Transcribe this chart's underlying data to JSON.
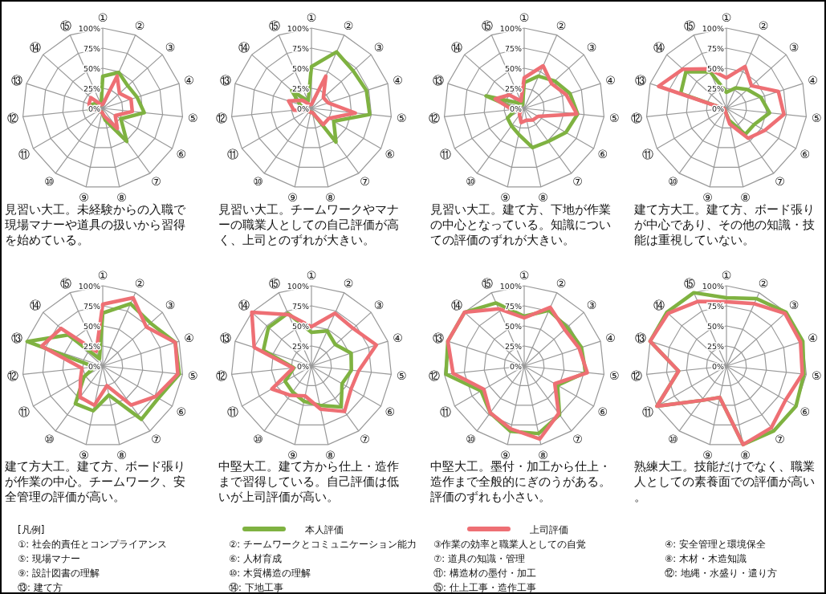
{
  "chart_data": [
    {
      "type": "radar",
      "categories": [
        "①",
        "②",
        "③",
        "④",
        "⑤",
        "⑥",
        "⑦",
        "⑧",
        "⑨",
        "⑩",
        "⑪",
        "⑫",
        "⑬",
        "⑭",
        "⑮"
      ],
      "ylim": [
        0,
        100
      ],
      "yticks": [
        {
          "value": 0,
          "label": "0%"
        },
        {
          "value": 25,
          "label": "25%"
        },
        {
          "value": 50,
          "label": "50%"
        },
        {
          "value": 75,
          "label": "75%"
        },
        {
          "value": 100,
          "label": "100%"
        }
      ],
      "legend": "bottom",
      "series": [
        {
          "name": "本人評価",
          "color": "#7fb241",
          "values": [
            40,
            49,
            42,
            45,
            52,
            26,
            51,
            15,
            5,
            5,
            5,
            17,
            15,
            10,
            5
          ]
        },
        {
          "name": "上司評価",
          "color": "#ee6f74",
          "values": [
            5,
            44,
            28,
            37,
            37,
            18,
            31,
            10,
            5,
            5,
            5,
            15,
            18,
            20,
            5
          ]
        }
      ],
      "annotations": [
        "見習い大工。未経験からの入職で現場マナーや道具の扱いから習得を始めている。"
      ]
    },
    {
      "type": "radar",
      "categories": [
        "①",
        "②",
        "③",
        "④",
        "⑤",
        "⑥",
        "⑦",
        "⑧",
        "⑨",
        "⑩",
        "⑪",
        "⑫",
        "⑬",
        "⑭",
        "⑮"
      ],
      "ylim": [
        0,
        100
      ],
      "yticks": [
        {
          "value": 0,
          "label": "0%"
        },
        {
          "value": 25,
          "label": "25%"
        },
        {
          "value": 50,
          "label": "50%"
        },
        {
          "value": 75,
          "label": "75%"
        },
        {
          "value": 100,
          "label": "100%"
        }
      ],
      "series": [
        {
          "color": "#7fb241",
          "values": [
            52,
            77,
            70,
            72,
            73,
            32,
            52,
            5,
            5,
            5,
            5,
            8,
            15,
            33,
            10
          ]
        },
        {
          "color": "#ee6f74",
          "values": [
            5,
            44,
            20,
            22,
            55,
            25,
            25,
            5,
            5,
            5,
            5,
            22,
            30,
            15,
            5
          ]
        }
      ],
      "annotations": [
        "見習い大工。チームワークやマナーの職業人としての自己評価が高く、上司とのずれが大きい。"
      ]
    },
    {
      "type": "radar",
      "categories": [
        "①",
        "②",
        "③",
        "④",
        "⑤",
        "⑥",
        "⑦",
        "⑧",
        "⑨",
        "⑩",
        "⑪",
        "⑫",
        "⑬",
        "⑭",
        "⑮"
      ],
      "ylim": [
        0,
        100
      ],
      "yticks": [
        {
          "value": 0,
          "label": "0%"
        },
        {
          "value": 25,
          "label": "25%"
        },
        {
          "value": 50,
          "label": "50%"
        },
        {
          "value": 75,
          "label": "75%"
        },
        {
          "value": 100,
          "label": "100%"
        }
      ],
      "series": [
        {
          "color": "#7fb241",
          "values": [
            32,
            44,
            51,
            60,
            67,
            60,
            51,
            50,
            33,
            27,
            24,
            10,
            50,
            10,
            5
          ]
        },
        {
          "color": "#ee6f74",
          "values": [
            38,
            58,
            46,
            55,
            66,
            20,
            18,
            15,
            18,
            10,
            5,
            15,
            38,
            25,
            10
          ]
        }
      ],
      "annotations": [
        "見習い大工。建て方、下地が作業の中心となっている。知識についての評価のずれが大きい。"
      ]
    },
    {
      "type": "radar",
      "categories": [
        "①",
        "②",
        "③",
        "④",
        "⑤",
        "⑥",
        "⑦",
        "⑧",
        "⑨",
        "⑩",
        "⑪",
        "⑫",
        "⑬",
        "⑭",
        "⑮"
      ],
      "ylim": [
        0,
        100
      ],
      "yticks": [
        {
          "value": 0,
          "label": "0%"
        },
        {
          "value": 25,
          "label": "25%"
        },
        {
          "value": 50,
          "label": "50%"
        },
        {
          "value": 75,
          "label": "75%"
        },
        {
          "value": 100,
          "label": "100%"
        }
      ],
      "series": [
        {
          "color": "#7fb241",
          "values": [
            20,
            28,
            35,
            45,
            54,
            40,
            40,
            15,
            5,
            3,
            3,
            3,
            60,
            68,
            50
          ]
        },
        {
          "color": "#ee6f74",
          "values": [
            38,
            57,
            42,
            68,
            72,
            55,
            46,
            20,
            5,
            3,
            3,
            3,
            89,
            73,
            54
          ]
        }
      ],
      "annotations": [
        "建て方大工。建て方、ボード張りが中心であり、その他の知識・技能は重視していない。"
      ]
    },
    {
      "type": "radar",
      "categories": [
        "①",
        "②",
        "③",
        "④",
        "⑤",
        "⑥",
        "⑦",
        "⑧",
        "⑨",
        "⑩",
        "⑪",
        "⑫",
        "⑬",
        "⑭",
        "⑮"
      ],
      "ylim": [
        0,
        100
      ],
      "yticks": [
        {
          "value": 0,
          "label": "0%"
        },
        {
          "value": 25,
          "label": "25%"
        },
        {
          "value": 50,
          "label": "50%"
        },
        {
          "value": 75,
          "label": "75%"
        },
        {
          "value": 100,
          "label": "100%"
        }
      ],
      "series": [
        {
          "color": "#7fb241",
          "values": [
            66,
            85,
            80,
            95,
            96,
            80,
            82,
            37,
            57,
            58,
            27,
            10,
            99,
            58,
            10
          ]
        },
        {
          "color": "#ee6f74",
          "values": [
            77,
            93,
            73,
            95,
            94,
            76,
            60,
            25,
            50,
            48,
            32,
            26,
            80,
            70,
            20
          ]
        }
      ],
      "annotations": [
        "建て方大工。建て方、ボード張りが作業の中心。チームワーク、安全管理の評価が高い。"
      ]
    },
    {
      "type": "radar",
      "categories": [
        "①",
        "②",
        "③",
        "④",
        "⑤",
        "⑥",
        "⑦",
        "⑧",
        "⑨",
        "⑩",
        "⑪",
        "⑫",
        "⑬",
        "⑭",
        "⑮"
      ],
      "ylim": [
        0,
        100
      ],
      "yticks": [
        {
          "value": 0,
          "label": "0%"
        },
        {
          "value": 25,
          "label": "25%"
        },
        {
          "value": 50,
          "label": "50%"
        },
        {
          "value": 75,
          "label": "75%"
        },
        {
          "value": 100,
          "label": "100%"
        }
      ],
      "series": [
        {
          "color": "#7fb241",
          "values": [
            42,
            48,
            40,
            52,
            50,
            44,
            63,
            50,
            45,
            40,
            38,
            22,
            63,
            72,
            72
          ]
        },
        {
          "color": "#ee6f74",
          "values": [
            49,
            72,
            70,
            85,
            59,
            57,
            70,
            55,
            38,
            45,
            57,
            23,
            75,
            100,
            70
          ]
        }
      ],
      "annotations": [
        "中堅大工。建て方から仕上・造作まで習得している。自己評価は低いが上司評価が高い。"
      ]
    },
    {
      "type": "radar",
      "categories": [
        "①",
        "②",
        "③",
        "④",
        "⑤",
        "⑥",
        "⑦",
        "⑧",
        "⑨",
        "⑩",
        "⑪",
        "⑫",
        "⑬",
        "⑭",
        "⑮"
      ],
      "ylim": [
        0,
        100
      ],
      "yticks": [
        {
          "value": 0,
          "label": "0%"
        },
        {
          "value": 25,
          "label": "25%"
        },
        {
          "value": 50,
          "label": "50%"
        },
        {
          "value": 75,
          "label": "75%"
        },
        {
          "value": 100,
          "label": "100%"
        }
      ],
      "series": [
        {
          "color": "#7fb241",
          "values": [
            62,
            76,
            72,
            75,
            77,
            48,
            75,
            86,
            83,
            72,
            62,
            98,
            100,
            100,
            86
          ]
        },
        {
          "color": "#ee6f74",
          "values": [
            60,
            80,
            68,
            72,
            79,
            44,
            73,
            93,
            80,
            72,
            58,
            89,
            100,
            100,
            78
          ]
        }
      ],
      "annotations": [
        "中堅大工。墨付・加工から仕上・造作まで全般的にぎのうがある。評価のずれも小さい。"
      ]
    },
    {
      "type": "radar",
      "categories": [
        "①",
        "②",
        "③",
        "④",
        "⑤",
        "⑥",
        "⑦",
        "⑧",
        "⑨",
        "⑩",
        "⑪",
        "⑫",
        "⑬",
        "⑭",
        "⑮"
      ],
      "ylim": [
        0,
        100
      ],
      "yticks": [
        {
          "value": 0,
          "label": "0%"
        },
        {
          "value": 25,
          "label": "25%"
        },
        {
          "value": 50,
          "label": "50%"
        },
        {
          "value": 75,
          "label": "75%"
        },
        {
          "value": 100,
          "label": "100%"
        }
      ],
      "series": [
        {
          "color": "#7fb241",
          "values": [
            85,
            92,
            100,
            100,
            97,
            100,
            100,
            100,
            40,
            53,
            100,
            60,
            100,
            100,
            100
          ]
        },
        {
          "color": "#ee6f74",
          "values": [
            80,
            85,
            98,
            97,
            95,
            85,
            95,
            100,
            40,
            53,
            100,
            60,
            100,
            98,
            88
          ]
        }
      ],
      "annotations": [
        "熟練大工。技能だけでなく、職業人としての素養面での評価が高い。"
      ]
    },
    {
      "type": "other",
      "title": "[凡例]",
      "annotations": [
        "①: 社会的責任とコンプライアンス",
        "②: チームワークとコミュニケーション能力",
        "③作業の効率と職業人としての自覚",
        "④: 安全管理と環境保全",
        "⑤: 現場マナー",
        "⑥: 人材育成",
        "⑦: 道具の知識・管理",
        "⑧: 木材・木造知識",
        "⑨: 設計図書の理解",
        "⑩: 木質構造の理解",
        "⑪: 構造材の墨付・加工",
        "⑫: 地縄・水盛り・遣り方",
        "⑬: 建て方",
        "⑭: 下地工事",
        "⑮: 仕上工事・造作工事"
      ]
    }
  ]
}
